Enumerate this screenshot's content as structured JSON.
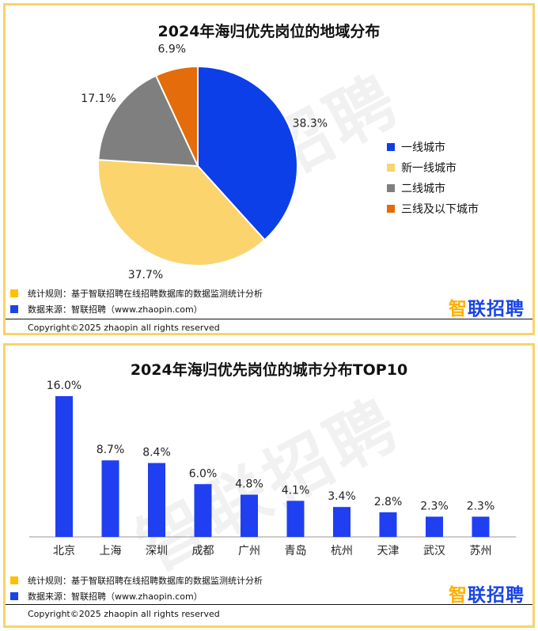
{
  "chart_data": [
    {
      "type": "pie",
      "title": "2024年海归优先岗位的地域分布",
      "categories": [
        "一线城市",
        "新一线城市",
        "二线城市",
        "三线及以下城市"
      ],
      "values": [
        38.3,
        37.7,
        17.1,
        6.9
      ],
      "labels": [
        "38.3%",
        "37.7%",
        "17.1%",
        "6.9%"
      ],
      "colors": [
        "#0d3fe8",
        "#fbd46e",
        "#7f7f7f",
        "#e46c0a"
      ],
      "legend_position": "right"
    },
    {
      "type": "bar",
      "title": "2024年海归优先岗位的城市分布TOP10",
      "categories": [
        "北京",
        "上海",
        "深圳",
        "成都",
        "广州",
        "青岛",
        "杭州",
        "天津",
        "武汉",
        "苏州"
      ],
      "values": [
        16.0,
        8.7,
        8.4,
        6.0,
        4.8,
        4.1,
        3.4,
        2.8,
        2.3,
        2.3
      ],
      "labels": [
        "16.0%",
        "8.7%",
        "8.4%",
        "6.0%",
        "4.8%",
        "4.1%",
        "3.4%",
        "2.8%",
        "2.3%",
        "2.3%"
      ],
      "color": "#1f3ff0",
      "ylim": [
        0,
        16
      ]
    }
  ],
  "notes": {
    "rule": "统计规则：基于智联招聘在线招聘数据库的数据监测统计分析",
    "source": "数据来源：智联招聘（www.zhaopin.com）",
    "rule_color": "#ffc000",
    "source_color": "#1a44e6"
  },
  "brand": {
    "zhi": "智",
    "rest": "联招聘"
  },
  "watermark": "智联招聘",
  "copyright": "Copyright©2025 zhaopin all rights reserved"
}
